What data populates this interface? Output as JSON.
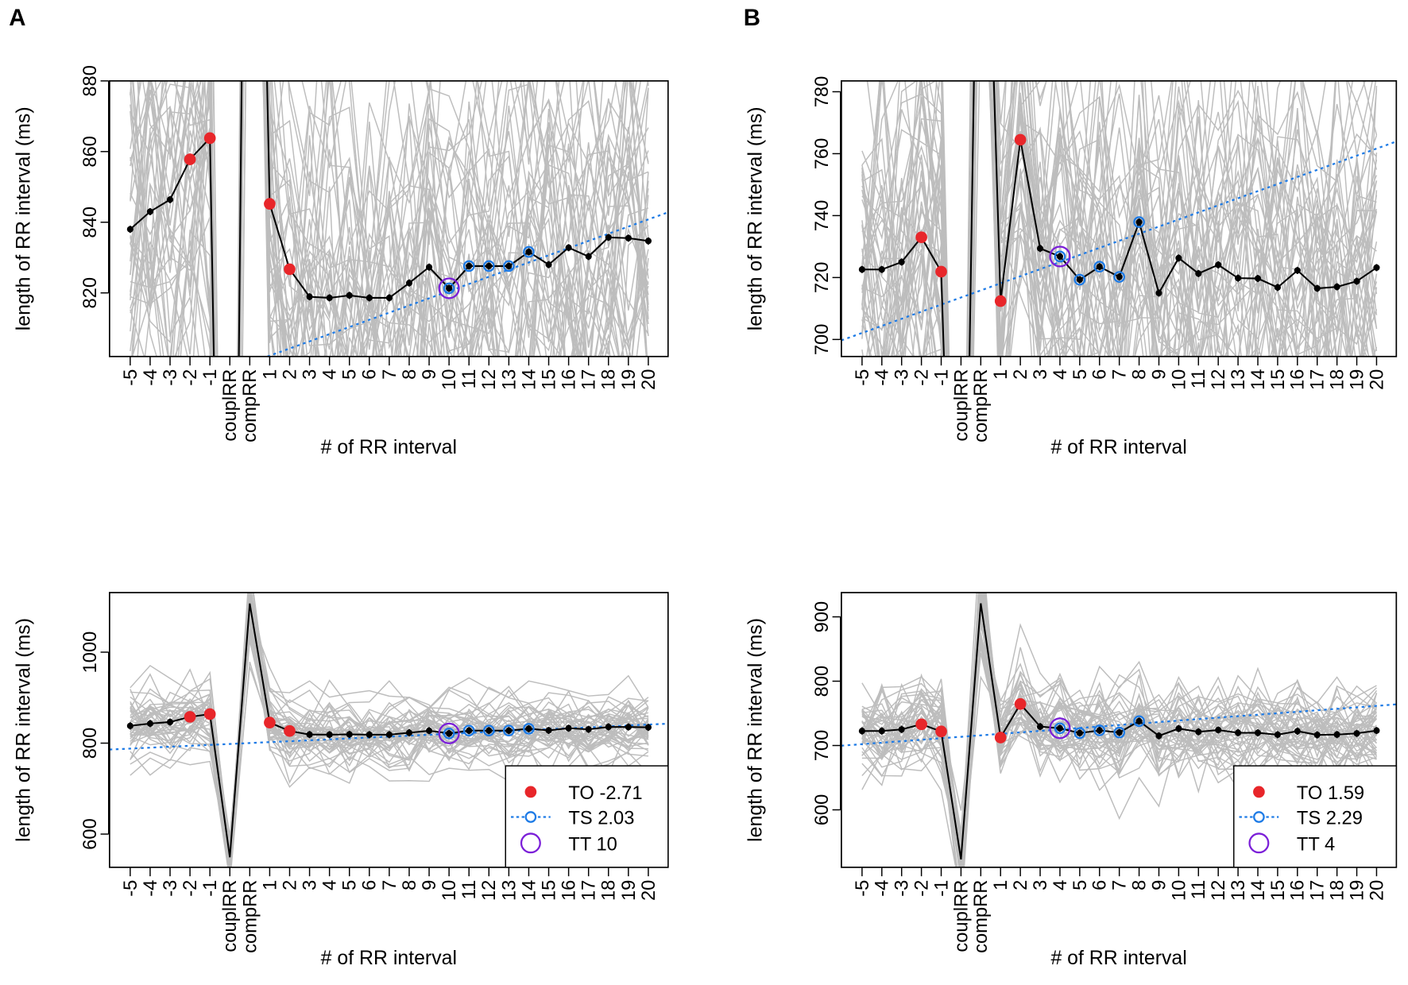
{
  "panel_letters": {
    "a": "A",
    "b": "B"
  },
  "colors": {
    "trace": "#bdbdbd",
    "mean": "#000000",
    "to": "#e8262a",
    "ts": "#1e7be6",
    "tt": "#7b1fd8"
  },
  "chart_data": [
    {
      "id": "A-zoom",
      "type": "line",
      "group": "A",
      "xlabel": "# of RR interval",
      "ylabel": "length of RR interval (ms)",
      "categories": [
        "-5",
        "-4",
        "-3",
        "-2",
        "-1",
        "couplRR",
        "compRR",
        "1",
        "2",
        "3",
        "4",
        "5",
        "6",
        "7",
        "8",
        "9",
        "10",
        "11",
        "12",
        "13",
        "14",
        "15",
        "16",
        "17",
        "18",
        "19",
        "20"
      ],
      "mean": [
        838,
        843,
        846.4,
        857.8,
        863.8,
        549,
        1107,
        845.2,
        826.7,
        818.9,
        818.6,
        819.3,
        818.6,
        818.6,
        822.8,
        827.3,
        821.3,
        827.6,
        827.6,
        827.6,
        831.6,
        828,
        832.8,
        830.3,
        835.7,
        835.5,
        834.7
      ],
      "ylim": [
        802,
        880
      ],
      "yticks": [
        820,
        840,
        860,
        880
      ],
      "to_points": [
        "-2",
        "-1",
        "1",
        "2"
      ],
      "ts_points": [
        "10",
        "11",
        "12",
        "13",
        "14"
      ],
      "tt_point": "10",
      "ts_line": {
        "slope_per_beat": 2.03,
        "value_at_tt": 820.5
      },
      "legend": null
    },
    {
      "id": "B-zoom",
      "type": "line",
      "group": "B",
      "xlabel": "# of RR interval",
      "ylabel": "length of RR interval (ms)",
      "categories": [
        "-5",
        "-4",
        "-3",
        "-2",
        "-1",
        "couplRR",
        "compRR",
        "1",
        "2",
        "3",
        "4",
        "5",
        "6",
        "7",
        "8",
        "9",
        "10",
        "11",
        "12",
        "13",
        "14",
        "15",
        "16",
        "17",
        "18",
        "19",
        "20"
      ],
      "mean": [
        722.6,
        722.6,
        725,
        733,
        721.9,
        523,
        921,
        712.4,
        764.5,
        729.4,
        726.8,
        719.3,
        723.5,
        720.2,
        737.9,
        715,
        726.3,
        721.3,
        724.1,
        719.8,
        719.7,
        716.8,
        722.3,
        716.5,
        717,
        718.8,
        723.2
      ],
      "ylim": [
        694.5,
        783.5
      ],
      "yticks": [
        700,
        720,
        740,
        760,
        780
      ],
      "to_points": [
        "-2",
        "-1",
        "1",
        "2"
      ],
      "ts_points": [
        "4",
        "5",
        "6",
        "7",
        "8"
      ],
      "tt_point": "4",
      "ts_line": {
        "slope_per_beat": 2.29,
        "value_at_tt": 725
      },
      "legend": null
    },
    {
      "id": "A-full",
      "type": "line",
      "group": "A",
      "xlabel": "# of RR interval",
      "ylabel": "length of RR interval (ms)",
      "categories": [
        "-5",
        "-4",
        "-3",
        "-2",
        "-1",
        "couplRR",
        "compRR",
        "1",
        "2",
        "3",
        "4",
        "5",
        "6",
        "7",
        "8",
        "9",
        "10",
        "11",
        "12",
        "13",
        "14",
        "15",
        "16",
        "17",
        "18",
        "19",
        "20"
      ],
      "mean": [
        838,
        843,
        846.4,
        857.8,
        863.8,
        549,
        1107,
        845.2,
        826.7,
        818.9,
        818.6,
        819.3,
        818.6,
        818.6,
        822.8,
        827.3,
        821.3,
        827.6,
        827.6,
        827.6,
        831.6,
        828,
        832.8,
        830.3,
        835.7,
        835.5,
        834.7
      ],
      "ylim": [
        527,
        1131
      ],
      "yticks": [
        600,
        800,
        1000
      ],
      "to_points": [
        "-2",
        "-1",
        "1",
        "2"
      ],
      "ts_points": [
        "10",
        "11",
        "12",
        "13",
        "14"
      ],
      "tt_point": "10",
      "ts_line": {
        "slope_per_beat": 2.03,
        "value_at_tt": 820.5
      },
      "legend": {
        "placement": "bottom-right",
        "to": "TO -2.71",
        "ts": "TS 2.03",
        "tt": "TT 10"
      }
    },
    {
      "id": "B-full",
      "type": "line",
      "group": "B",
      "xlabel": "# of RR interval",
      "ylabel": "length of RR interval (ms)",
      "categories": [
        "-5",
        "-4",
        "-3",
        "-2",
        "-1",
        "couplRR",
        "compRR",
        "1",
        "2",
        "3",
        "4",
        "5",
        "6",
        "7",
        "8",
        "9",
        "10",
        "11",
        "12",
        "13",
        "14",
        "15",
        "16",
        "17",
        "18",
        "19",
        "20"
      ],
      "mean": [
        722.6,
        722.6,
        725,
        733,
        721.9,
        523,
        921,
        712.4,
        764.5,
        729.4,
        726.8,
        719.3,
        723.5,
        720.2,
        737.9,
        715,
        726.3,
        721.3,
        724.1,
        719.8,
        719.7,
        716.8,
        722.3,
        716.5,
        717,
        718.8,
        723.2
      ],
      "ylim": [
        510.7,
        937.7
      ],
      "yticks": [
        600,
        700,
        800,
        900
      ],
      "to_points": [
        "-2",
        "-1",
        "1",
        "2"
      ],
      "ts_points": [
        "4",
        "5",
        "6",
        "7",
        "8"
      ],
      "tt_point": "4",
      "ts_line": {
        "slope_per_beat": 2.29,
        "value_at_tt": 725
      },
      "legend": {
        "placement": "bottom-right",
        "to": "TO 1.59",
        "ts": "TS 2.29",
        "tt": "TT 4"
      }
    }
  ]
}
